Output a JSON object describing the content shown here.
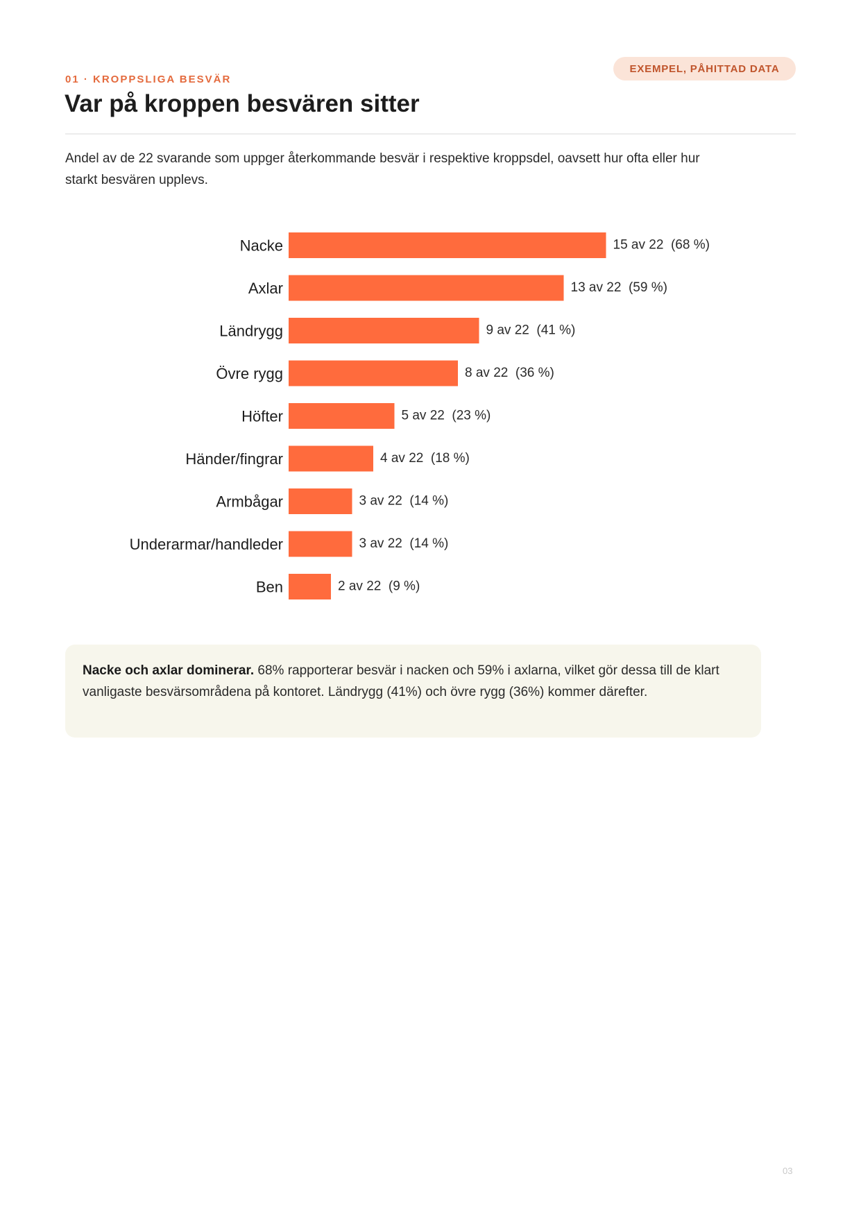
{
  "badge": "EXEMPEL, PÅHITTAD DATA",
  "kicker": "01 · KROPPSLIGA BESVÄR",
  "title": "Var på kroppen besvären sitter",
  "intro": "Andel av de 22 svarande som uppger återkommande besvär i respektive kroppsdel, oavsett hur ofta eller hur starkt besvären upplevs.",
  "colors": {
    "bar": "#ff6b3d",
    "accent": "#e46a3d",
    "callout_bg": "#f7f6ec"
  },
  "chart_data": {
    "type": "bar",
    "orientation": "horizontal",
    "total": 22,
    "categories": [
      "Nacke",
      "Axlar",
      "Ländrygg",
      "Övre rygg",
      "Höfter",
      "Händer/fingrar",
      "Armbågar",
      "Underarmar/handleder",
      "Ben"
    ],
    "values": [
      15,
      13,
      9,
      8,
      5,
      4,
      3,
      3,
      2
    ],
    "percents": [
      68,
      59,
      41,
      36,
      23,
      18,
      14,
      14,
      9
    ],
    "labels": [
      "15 av 22  (68 %)",
      "13 av 22  (59 %)",
      "9 av 22  (41 %)",
      "8 av 22  (36 %)",
      "5 av 22  (23 %)",
      "4 av 22  (18 %)",
      "3 av 22  (14 %)",
      "3 av 22  (14 %)",
      "2 av 22  (9 %)"
    ],
    "title": "",
    "xlabel": "",
    "ylabel": "",
    "xlim": [
      0,
      22
    ],
    "grid": false,
    "legend": "none"
  },
  "callout": {
    "lead": "Nacke och axlar dominerar.",
    "text": " 68% rapporterar besvär i nacken och 59% i axlarna, vilket gör dessa till de klart vanligaste besvärsområdena på kontoret. Ländrygg (41%) och övre rygg (36%) kommer därefter."
  },
  "page_number": "03"
}
